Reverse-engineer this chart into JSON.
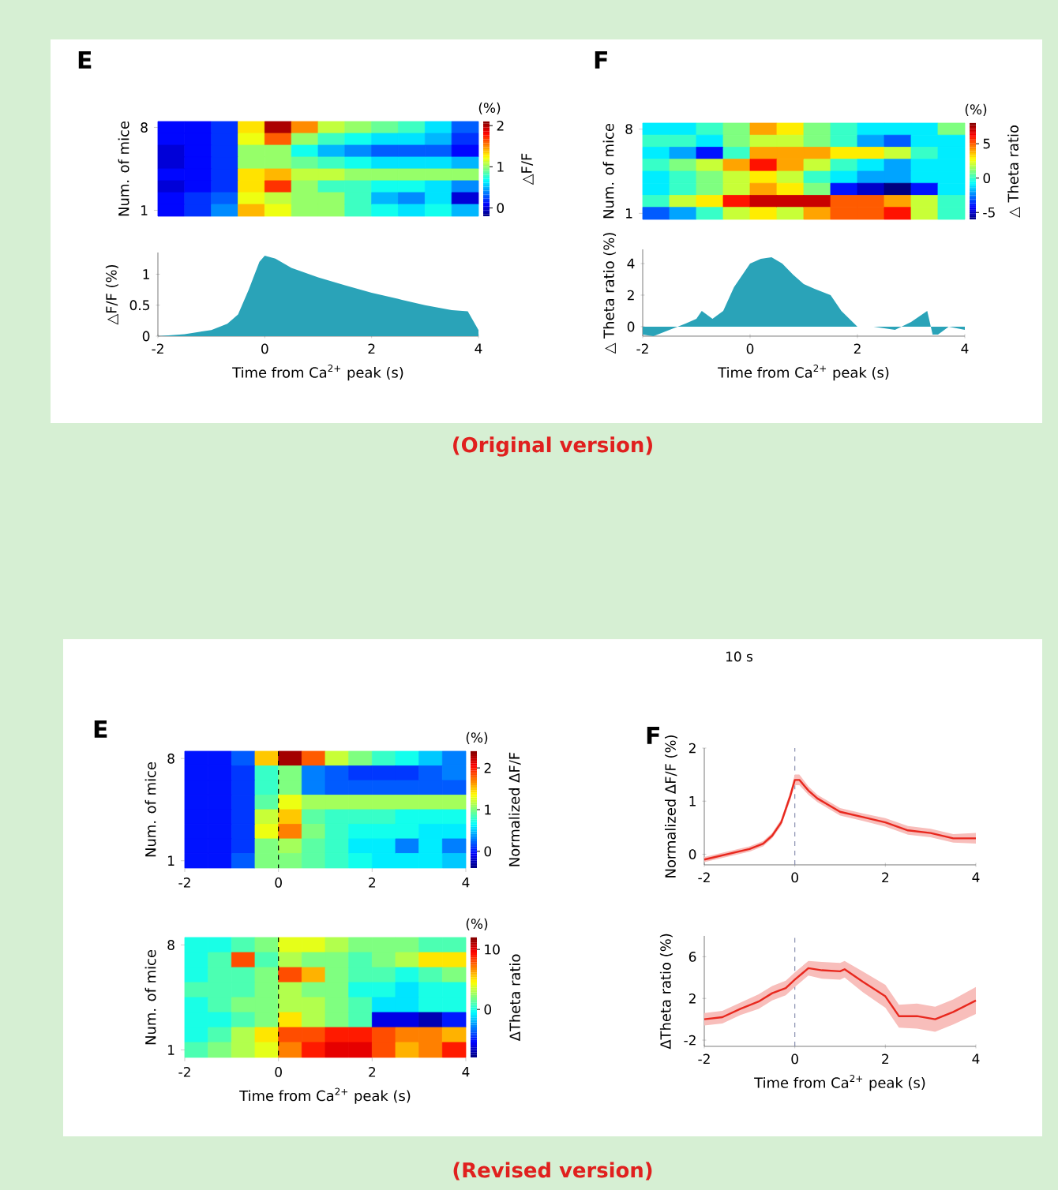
{
  "chart_data": [
    {
      "type": "heatmap",
      "title": "E",
      "ylabel": "Num. of mice",
      "clabel": "△F/F",
      "annotations": [
        "(%)"
      ],
      "tick_labels": "y",
      "xlim": [
        -2,
        4
      ],
      "x": [
        -1.75,
        -1.25,
        -0.75,
        -0.25,
        0.25,
        0.75,
        1.25,
        1.75,
        2.25,
        2.75,
        3.25,
        3.75
      ],
      "y_categories": [
        "8",
        null,
        null,
        null,
        null,
        null,
        null,
        "1"
      ],
      "cells": [
        [
          0.1,
          0.1,
          0.2,
          1.3,
          2.0,
          1.5,
          1.1,
          1.0,
          0.9,
          0.8,
          0.6,
          0.3
        ],
        [
          0.1,
          0.1,
          0.2,
          1.2,
          1.6,
          1.0,
          0.8,
          0.7,
          0.6,
          0.6,
          0.5,
          0.2
        ],
        [
          0.0,
          0.1,
          0.2,
          1.0,
          1.0,
          0.7,
          0.5,
          0.4,
          0.3,
          0.3,
          0.3,
          0.1
        ],
        [
          0.0,
          0.1,
          0.2,
          1.0,
          1.0,
          0.9,
          0.8,
          0.7,
          0.6,
          0.6,
          0.6,
          0.5
        ],
        [
          0.1,
          0.1,
          0.2,
          1.3,
          1.4,
          1.1,
          1.1,
          1.0,
          1.0,
          1.0,
          1.0,
          1.0
        ],
        [
          0.0,
          0.1,
          0.2,
          1.3,
          1.7,
          1.0,
          0.8,
          0.8,
          0.7,
          0.7,
          0.6,
          0.4
        ],
        [
          0.1,
          0.2,
          0.3,
          1.2,
          1.1,
          1.0,
          1.0,
          0.8,
          0.5,
          0.4,
          0.6,
          0.0
        ],
        [
          0.1,
          0.2,
          0.4,
          1.4,
          1.2,
          1.0,
          1.0,
          0.8,
          0.7,
          0.6,
          0.7,
          0.5
        ]
      ],
      "clim": [
        -0.2,
        2.1
      ],
      "cticks": [
        0,
        1,
        2
      ]
    },
    {
      "type": "area",
      "xlabel": "Time from Ca$^{2+}$ peak (s)",
      "ylabel": "△F/F (%)",
      "annotations": [
        "(Original version)"
      ],
      "xlim": [
        -2,
        4
      ],
      "xticks": [
        -2,
        0,
        2,
        4
      ],
      "ylim": [
        0,
        1.35
      ],
      "yticks": [
        0,
        0.5,
        1
      ],
      "series": [
        {
          "color": "#2aa3b8",
          "x": [
            -2,
            -1.5,
            -1,
            -0.7,
            -0.5,
            -0.3,
            -0.1,
            0,
            0.2,
            0.5,
            1,
            1.5,
            2,
            2.5,
            3,
            3.5,
            3.8,
            4
          ],
          "values": [
            0,
            0.03,
            0.1,
            0.2,
            0.35,
            0.75,
            1.2,
            1.3,
            1.25,
            1.1,
            0.95,
            0.82,
            0.7,
            0.6,
            0.5,
            0.42,
            0.4,
            0.1
          ]
        }
      ]
    },
    {
      "type": "heatmap",
      "title": "F",
      "ylabel": "Num. of mice",
      "clabel": "△ Theta ratio",
      "annotations": [
        "(%)"
      ],
      "tick_labels": "y",
      "xlim": [
        -2,
        4
      ],
      "x": [
        -1.75,
        -1.25,
        -0.75,
        -0.25,
        0.25,
        0.75,
        1.25,
        1.75,
        2.25,
        2.75,
        3.25,
        3.75
      ],
      "y_categories": [
        "8",
        null,
        null,
        null,
        null,
        null,
        null,
        "1"
      ],
      "cells": [
        [
          -1,
          -1,
          0,
          1,
          4,
          3,
          1,
          0,
          -1,
          -1,
          -1,
          1
        ],
        [
          0,
          0,
          -1,
          1,
          2,
          2,
          1,
          0,
          -2,
          -3,
          -1,
          -1
        ],
        [
          -1,
          -2,
          -4,
          0,
          4,
          4,
          4,
          3,
          3,
          2,
          0,
          -1
        ],
        [
          0,
          1,
          2,
          4,
          6,
          4,
          2,
          0,
          -1,
          -2,
          -1,
          -1
        ],
        [
          -1,
          0,
          1,
          2,
          3,
          2,
          0,
          -1,
          -2,
          -2,
          -1,
          -1
        ],
        [
          -1,
          0,
          1,
          2,
          4,
          3,
          1,
          -4,
          -5,
          -6,
          -4,
          -1
        ],
        [
          0,
          2,
          3,
          6,
          7,
          7,
          7,
          5,
          5,
          4,
          2,
          0
        ],
        [
          -3,
          -2,
          0,
          2,
          3,
          2,
          4,
          5,
          5,
          6,
          2,
          0
        ]
      ],
      "clim": [
        -6,
        8
      ],
      "cticks": [
        -5,
        0,
        5
      ]
    },
    {
      "type": "area",
      "xlabel": "Time from Ca$^{2+}$ peak (s)",
      "ylabel": "△ Theta ratio (%)",
      "xlim": [
        -2,
        4
      ],
      "xticks": [
        -2,
        0,
        2,
        4
      ],
      "ylim": [
        -0.6,
        4.9
      ],
      "yticks": [
        0,
        2,
        4
      ],
      "series": [
        {
          "color": "#2aa3b8",
          "x": [
            -2,
            -1.8,
            -1.5,
            -1.2,
            -1,
            -0.9,
            -0.7,
            -0.5,
            -0.3,
            0,
            0.2,
            0.4,
            0.6,
            0.8,
            1,
            1.2,
            1.5,
            1.7,
            2,
            2.3,
            2.7,
            3,
            3.3,
            3.4,
            3.5,
            3.7,
            4
          ],
          "values": [
            -0.5,
            -0.6,
            -0.2,
            0.2,
            0.5,
            1,
            0.5,
            1,
            2.5,
            4,
            4.3,
            4.4,
            4,
            3.3,
            2.7,
            2.4,
            2,
            1,
            0,
            0,
            -0.2,
            0.3,
            1,
            -0.5,
            -0.5,
            0,
            -0.2
          ]
        }
      ]
    },
    {
      "type": "heatmap",
      "title": "E",
      "ylabel": "Num. of mice",
      "clabel": "Normalized ΔF/F",
      "annotations": [
        "(%)"
      ],
      "xlim": [
        -2,
        4
      ],
      "xticks": [
        -2,
        0,
        2,
        4
      ],
      "x": [
        -1.75,
        -1.25,
        -0.75,
        -0.25,
        0.25,
        0.75,
        1.25,
        1.75,
        2.25,
        2.75,
        3.25,
        3.75
      ],
      "y_categories": [
        "8",
        null,
        null,
        null,
        null,
        null,
        null,
        "1"
      ],
      "cells": [
        [
          0,
          0,
          0.2,
          1.5,
          2.3,
          1.8,
          1.2,
          1.0,
          0.8,
          0.7,
          0.5,
          0.3
        ],
        [
          0,
          0,
          0.1,
          0.8,
          1.0,
          0.3,
          0.2,
          0.1,
          0.1,
          0.1,
          0.2,
          0.3
        ],
        [
          0,
          0,
          0.1,
          0.8,
          1.0,
          0.3,
          0.2,
          0.2,
          0.2,
          0.2,
          0.2,
          0.2
        ],
        [
          0,
          0,
          0.1,
          0.9,
          1.3,
          1.1,
          1.1,
          1.1,
          1.1,
          1.1,
          1.1,
          1.1
        ],
        [
          0,
          0,
          0.1,
          1.2,
          1.5,
          0.9,
          0.8,
          0.8,
          0.8,
          0.7,
          0.7,
          0.7
        ],
        [
          0,
          0,
          0.1,
          1.3,
          1.7,
          1.0,
          0.8,
          0.7,
          0.7,
          0.7,
          0.6,
          0.6
        ],
        [
          0,
          0,
          0.1,
          1.0,
          1.1,
          0.9,
          0.8,
          0.6,
          0.6,
          0.3,
          0.6,
          0.3
        ],
        [
          0,
          0,
          0.2,
          1.0,
          1.0,
          0.9,
          0.8,
          0.7,
          0.6,
          0.6,
          0.6,
          0.5
        ]
      ],
      "clim": [
        -0.4,
        2.4
      ],
      "cticks": [
        0,
        1,
        2
      ],
      "ref_lines": [
        {
          "axis": "x",
          "value": 0,
          "color": "#000000",
          "line_style": "dashed"
        }
      ]
    },
    {
      "type": "heatmap",
      "xlabel": "Time from Ca$^{2+}$ peak (s)",
      "ylabel": "Num. of mice",
      "clabel": "ΔTheta ratio",
      "annotations": [
        "(%)"
      ],
      "xlim": [
        -2,
        4
      ],
      "xticks": [
        -2,
        0,
        2,
        4
      ],
      "x": [
        -1.75,
        -1.25,
        -0.75,
        -0.25,
        0.25,
        0.75,
        1.25,
        1.75,
        2.25,
        2.75,
        3.25,
        3.75
      ],
      "y_categories": [
        "8",
        null,
        null,
        null,
        null,
        null,
        null,
        "1"
      ],
      "cells": [
        [
          0,
          0,
          1,
          2,
          4,
          4,
          3,
          2,
          2,
          2,
          1,
          1
        ],
        [
          0,
          1,
          8,
          1,
          3,
          2,
          2,
          1,
          2,
          3,
          5,
          5
        ],
        [
          0,
          1,
          1,
          2,
          8,
          6,
          2,
          1,
          1,
          0,
          1,
          2
        ],
        [
          1,
          1,
          1,
          2,
          3,
          2,
          2,
          0,
          0,
          -1,
          0,
          0
        ],
        [
          0,
          1,
          2,
          2,
          3,
          3,
          2,
          1,
          -1,
          -1,
          0,
          0
        ],
        [
          0,
          0,
          1,
          2,
          5,
          3,
          2,
          1,
          -6,
          -6,
          -7,
          -5
        ],
        [
          0,
          1,
          3,
          5,
          8,
          8,
          9,
          9,
          8,
          7,
          7,
          6
        ],
        [
          1,
          2,
          3,
          4,
          7,
          9,
          10,
          10,
          8,
          6,
          7,
          9
        ]
      ],
      "clim": [
        -8,
        12
      ],
      "cticks": [
        0,
        10
      ],
      "ref_lines": [
        {
          "axis": "x",
          "value": 0,
          "color": "#000000",
          "line_style": "dashed"
        }
      ]
    },
    {
      "type": "line",
      "title": "F",
      "ylabel": "Normalized ΔF/F (%)",
      "annotations": [
        "10 s"
      ],
      "xlim": [
        -2,
        4
      ],
      "xticks": [
        -2,
        0,
        2,
        4
      ],
      "ylim": [
        -0.2,
        2
      ],
      "yticks": [
        0,
        1,
        2
      ],
      "ref_lines": [
        {
          "axis": "x",
          "value": 0,
          "color": "#8a90b0",
          "line_style": "dashed"
        }
      ],
      "series": [
        {
          "color": "#e8281e",
          "x": [
            -2,
            -1.5,
            -1,
            -0.7,
            -0.5,
            -0.3,
            -0.1,
            0,
            0.1,
            0.3,
            0.5,
            1,
            1.5,
            2,
            2.5,
            3,
            3.5,
            4
          ],
          "values": [
            -0.1,
            0,
            0.1,
            0.2,
            0.35,
            0.6,
            1.1,
            1.4,
            1.4,
            1.2,
            1.05,
            0.8,
            0.7,
            0.6,
            0.45,
            0.4,
            0.3,
            0.3
          ],
          "lower": [
            -0.15,
            -0.05,
            0.05,
            0.15,
            0.3,
            0.54,
            1.02,
            1.3,
            1.3,
            1.12,
            0.98,
            0.73,
            0.63,
            0.52,
            0.37,
            0.32,
            0.22,
            0.2
          ],
          "upper": [
            -0.05,
            0.05,
            0.15,
            0.25,
            0.4,
            0.66,
            1.18,
            1.5,
            1.5,
            1.28,
            1.12,
            0.87,
            0.77,
            0.68,
            0.53,
            0.48,
            0.38,
            0.4
          ]
        }
      ]
    },
    {
      "type": "line",
      "xlabel": "Time from Ca$^{2+}$ peak (s)",
      "ylabel": "ΔTheta ratio (%)",
      "annotations": [
        "(Revised version)"
      ],
      "xlim": [
        -2,
        4
      ],
      "xticks": [
        -2,
        0,
        2,
        4
      ],
      "ylim": [
        -2.6,
        8
      ],
      "yticks": [
        -2,
        2,
        6
      ],
      "ref_lines": [
        {
          "axis": "x",
          "value": 0,
          "color": "#8a90b0",
          "line_style": "dashed"
        }
      ],
      "series": [
        {
          "color": "#e8281e",
          "x": [
            -2,
            -1.6,
            -1.2,
            -0.8,
            -0.5,
            -0.2,
            0,
            0.3,
            0.6,
            1,
            1.1,
            1.5,
            2,
            2.3,
            2.7,
            3.1,
            3.5,
            4
          ],
          "values": [
            0,
            0.2,
            1,
            1.7,
            2.5,
            3,
            3.8,
            4.9,
            4.7,
            4.6,
            4.8,
            3.6,
            2.2,
            0.3,
            0.3,
            0,
            0.7,
            1.8
          ],
          "lower": [
            -0.6,
            -0.4,
            0.4,
            1,
            1.8,
            2.3,
            3.1,
            4.2,
            3.9,
            3.8,
            4,
            2.6,
            1.1,
            -0.8,
            -0.9,
            -1.2,
            -0.5,
            0.5
          ],
          "upper": [
            0.6,
            0.8,
            1.6,
            2.4,
            3.2,
            3.7,
            4.5,
            5.6,
            5.5,
            5.4,
            5.6,
            4.6,
            3.3,
            1.4,
            1.5,
            1.2,
            1.9,
            3.1
          ]
        }
      ]
    }
  ]
}
